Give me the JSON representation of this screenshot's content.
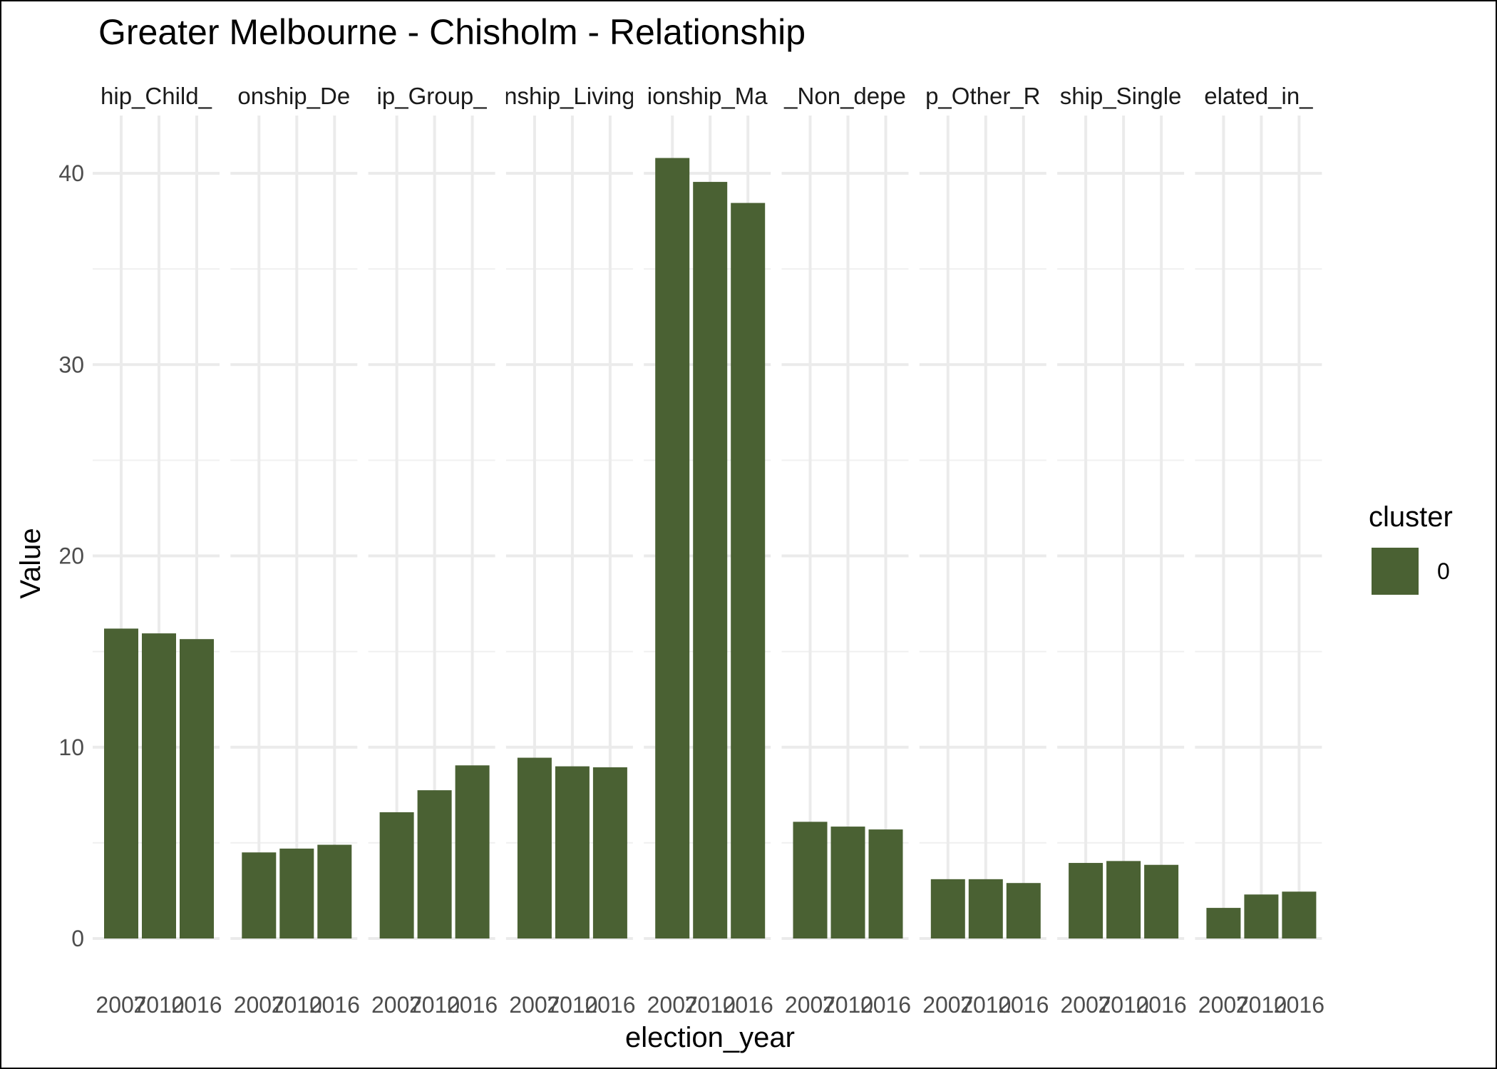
{
  "chart_data": {
    "type": "bar",
    "title": "Greater Melbourne - Chisholm - Relationship",
    "xlabel": "election_year",
    "ylabel": "Value",
    "ylim": [
      0,
      42
    ],
    "yticks": [
      0,
      10,
      20,
      30,
      40
    ],
    "grid": true,
    "legend": {
      "title": "cluster",
      "position": "right",
      "entries": [
        {
          "label": "0",
          "color": "#4a6133"
        }
      ]
    },
    "bar_color": "#4a6133",
    "categories": [
      "2007",
      "2010",
      "2016"
    ],
    "facets": [
      {
        "label": "hip_Child_",
        "values": [
          16.2,
          15.95,
          15.65
        ]
      },
      {
        "label": "onship_De",
        "values": [
          4.5,
          4.7,
          4.9
        ]
      },
      {
        "label": "ip_Group_",
        "values": [
          6.6,
          7.75,
          9.05
        ]
      },
      {
        "label": "nship_Living",
        "values": [
          9.45,
          9.0,
          8.95
        ]
      },
      {
        "label": "ionship_Ma",
        "values": [
          40.8,
          39.55,
          38.45
        ]
      },
      {
        "label": "_Non_depe",
        "values": [
          6.1,
          5.85,
          5.7
        ]
      },
      {
        "label": "p_Other_R",
        "values": [
          3.1,
          3.1,
          2.9
        ]
      },
      {
        "label": "ship_Single",
        "values": [
          3.95,
          4.05,
          3.85
        ]
      },
      {
        "label": "elated_in_",
        "values": [
          1.6,
          2.3,
          2.45
        ]
      }
    ]
  }
}
